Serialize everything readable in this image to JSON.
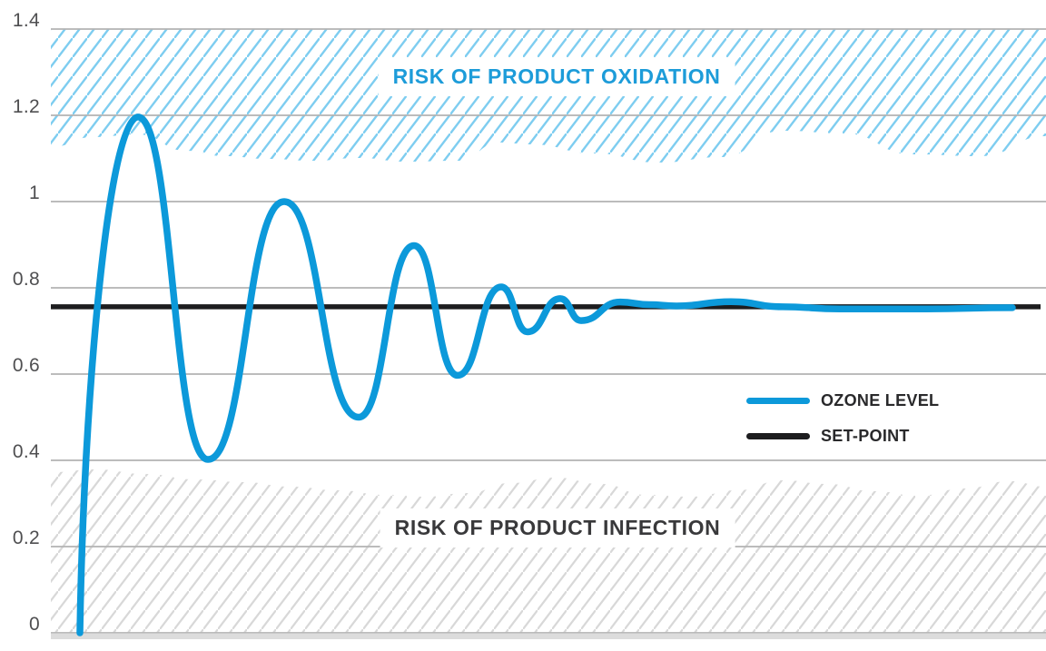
{
  "chart_data": {
    "type": "line",
    "title": "",
    "x_axis": {
      "label": "",
      "tick_labels_visible": false
    },
    "y_axis": {
      "label": "",
      "range": [
        0,
        1.4
      ],
      "ticks": [
        0,
        0.2,
        0.4,
        0.6,
        0.8,
        1,
        1.2,
        1.4
      ],
      "tick_labels": [
        "0",
        "0.2",
        "0.4",
        "0.6",
        "0.8",
        "1",
        "1.2",
        "1.4"
      ]
    },
    "grid": "horizontal",
    "zones": [
      {
        "name": "oxidation",
        "label": "RISK OF PRODUCT OXIDATION",
        "band_approx": [
          1.13,
          1.4
        ],
        "wavy_edge": true,
        "hatch_color": "#7ecdf0",
        "label_color": "#1d9cd9"
      },
      {
        "name": "infection",
        "label": "RISK OF PRODUCT INFECTION",
        "band_approx": [
          0,
          0.38
        ],
        "wavy_edge": true,
        "hatch_color": "#d8d8d8",
        "label_color": "#39393b"
      }
    ],
    "series": [
      {
        "name": "OZONE LEVEL",
        "color": "#0c99da",
        "stroke_width": 7.5,
        "x_unit": "px",
        "points": [
          [
            88,
            0
          ],
          [
            152,
            1.196
          ],
          [
            229,
            0.402
          ],
          [
            313,
            1.0
          ],
          [
            395,
            0.5
          ],
          [
            456,
            0.898
          ],
          [
            504,
            0.597
          ],
          [
            552,
            0.802
          ],
          [
            581,
            0.698
          ],
          [
            617,
            0.775
          ],
          [
            640,
            0.724
          ],
          [
            683,
            0.767
          ],
          [
            715,
            0.761
          ],
          [
            745,
            0.758
          ],
          [
            805,
            0.768
          ],
          [
            862,
            0.756
          ],
          [
            925,
            0.751
          ],
          [
            1020,
            0.751
          ],
          [
            1115,
            0.754
          ]
        ]
      },
      {
        "name": "SET-POINT",
        "color": "#1d1d1f",
        "stroke_width": 5.5,
        "type": "constant",
        "value": 0.756
      }
    ],
    "legend": {
      "position": "middle-right",
      "items": [
        {
          "label": "OZONE LEVEL",
          "color": "#0c99da"
        },
        {
          "label": "SET-POINT",
          "color": "#1d1d1f"
        }
      ]
    }
  },
  "colors": {
    "gridline": "#b3b3b3",
    "bottom_axis_bar": "#dcdcdc",
    "tick_label": "#4f4f51",
    "background": "#ffffff"
  }
}
